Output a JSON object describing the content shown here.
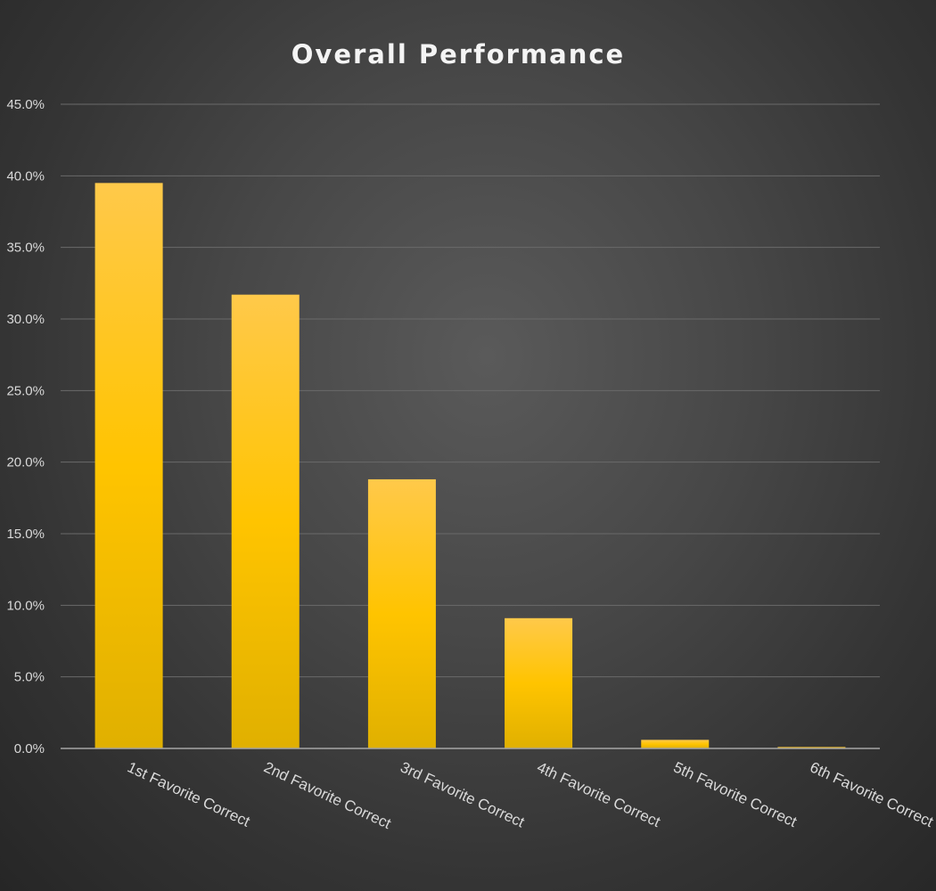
{
  "chart_data": {
    "type": "bar",
    "title": "Overall Performance",
    "xlabel": "",
    "ylabel": "",
    "categories": [
      "1st Favorite Correct",
      "2nd Favorite Correct",
      "3rd Favorite Correct",
      "4th Favorite Correct",
      "5th Favorite Correct",
      "6th Favorite Correct"
    ],
    "values": [
      39.5,
      31.7,
      18.8,
      9.1,
      0.6,
      0.1
    ],
    "value_format": "percent",
    "ylim": [
      0,
      45
    ],
    "yticks": [
      0,
      5,
      10,
      15,
      20,
      25,
      30,
      35,
      40,
      45
    ],
    "ytick_labels": [
      "0.0%",
      "5.0%",
      "10.0%",
      "15.0%",
      "20.0%",
      "25.0%",
      "30.0%",
      "35.0%",
      "40.0%",
      "45.0%"
    ],
    "grid": true,
    "legend": "none",
    "colors": {
      "bar_top": "#ffc94a",
      "bar_mid": "#ffc400",
      "bar_bottom": "#e0b000",
      "grid": "#6a6a6a",
      "axis": "#a6a6a6",
      "text": "#d9d9d9",
      "title": "#f4f4f4"
    }
  }
}
